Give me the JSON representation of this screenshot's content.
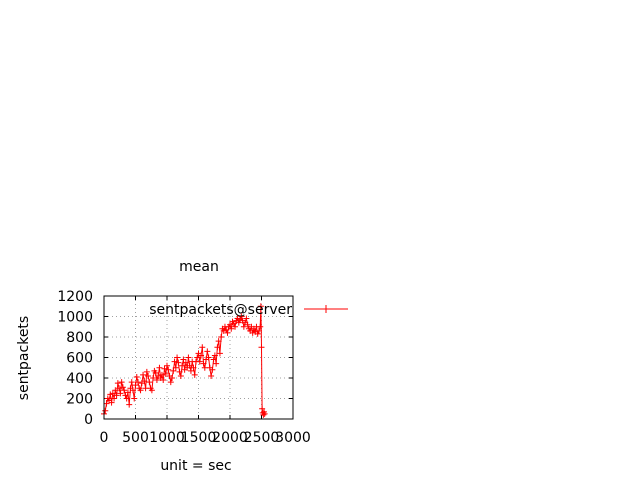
{
  "chart_data": {
    "type": "line",
    "title": "mean",
    "xlabel": "unit = sec",
    "ylabel": "sentpackets",
    "xlim": [
      0,
      3000
    ],
    "ylim": [
      0,
      1200
    ],
    "x_ticks": [
      "0",
      "500",
      "1000",
      "1500",
      "2000",
      "2500",
      "3000"
    ],
    "y_ticks": [
      "0",
      "200",
      "400",
      "600",
      "800",
      "1000",
      "1200"
    ],
    "grid": true,
    "legend_position": "top-right",
    "series": [
      {
        "name": "sentpackets@server",
        "color": "#ff0000",
        "marker": "plus",
        "points": [
          [
            0,
            50
          ],
          [
            20,
            80
          ],
          [
            40,
            150
          ],
          [
            60,
            200
          ],
          [
            80,
            180
          ],
          [
            100,
            240
          ],
          [
            120,
            160
          ],
          [
            140,
            250
          ],
          [
            160,
            200
          ],
          [
            180,
            280
          ],
          [
            200,
            230
          ],
          [
            220,
            350
          ],
          [
            240,
            300
          ],
          [
            260,
            250
          ],
          [
            280,
            360
          ],
          [
            300,
            310
          ],
          [
            320,
            280
          ],
          [
            340,
            230
          ],
          [
            360,
            200
          ],
          [
            380,
            260
          ],
          [
            400,
            140
          ],
          [
            420,
            300
          ],
          [
            440,
            360
          ],
          [
            460,
            280
          ],
          [
            480,
            200
          ],
          [
            500,
            330
          ],
          [
            520,
            410
          ],
          [
            540,
            360
          ],
          [
            560,
            300
          ],
          [
            580,
            280
          ],
          [
            600,
            350
          ],
          [
            620,
            430
          ],
          [
            640,
            370
          ],
          [
            660,
            300
          ],
          [
            680,
            460
          ],
          [
            700,
            420
          ],
          [
            720,
            360
          ],
          [
            740,
            300
          ],
          [
            760,
            280
          ],
          [
            780,
            400
          ],
          [
            800,
            470
          ],
          [
            820,
            450
          ],
          [
            840,
            380
          ],
          [
            860,
            420
          ],
          [
            880,
            500
          ],
          [
            900,
            400
          ],
          [
            920,
            430
          ],
          [
            940,
            380
          ],
          [
            960,
            490
          ],
          [
            980,
            440
          ],
          [
            1000,
            520
          ],
          [
            1020,
            480
          ],
          [
            1040,
            420
          ],
          [
            1060,
            360
          ],
          [
            1080,
            400
          ],
          [
            1100,
            470
          ],
          [
            1120,
            560
          ],
          [
            1140,
            500
          ],
          [
            1160,
            600
          ],
          [
            1180,
            550
          ],
          [
            1200,
            460
          ],
          [
            1220,
            420
          ],
          [
            1240,
            520
          ],
          [
            1260,
            580
          ],
          [
            1280,
            480
          ],
          [
            1300,
            550
          ],
          [
            1320,
            500
          ],
          [
            1340,
            600
          ],
          [
            1360,
            520
          ],
          [
            1380,
            470
          ],
          [
            1400,
            560
          ],
          [
            1420,
            500
          ],
          [
            1440,
            430
          ],
          [
            1460,
            560
          ],
          [
            1480,
            600
          ],
          [
            1500,
            640
          ],
          [
            1520,
            560
          ],
          [
            1540,
            620
          ],
          [
            1560,
            700
          ],
          [
            1580,
            540
          ],
          [
            1600,
            500
          ],
          [
            1620,
            580
          ],
          [
            1640,
            660
          ],
          [
            1660,
            600
          ],
          [
            1680,
            500
          ],
          [
            1700,
            420
          ],
          [
            1720,
            480
          ],
          [
            1740,
            580
          ],
          [
            1760,
            620
          ],
          [
            1780,
            540
          ],
          [
            1800,
            700
          ],
          [
            1820,
            760
          ],
          [
            1840,
            640
          ],
          [
            1860,
            800
          ],
          [
            1880,
            880
          ],
          [
            1900,
            860
          ],
          [
            1920,
            900
          ],
          [
            1940,
            870
          ],
          [
            1960,
            840
          ],
          [
            1980,
            900
          ],
          [
            2000,
            920
          ],
          [
            2020,
            880
          ],
          [
            2040,
            950
          ],
          [
            2060,
            930
          ],
          [
            2080,
            900
          ],
          [
            2100,
            960
          ],
          [
            2120,
            980
          ],
          [
            2140,
            940
          ],
          [
            2160,
            970
          ],
          [
            2180,
            1000
          ],
          [
            2200,
            960
          ],
          [
            2220,
            900
          ],
          [
            2240,
            940
          ],
          [
            2260,
            980
          ],
          [
            2280,
            920
          ],
          [
            2300,
            880
          ],
          [
            2320,
            860
          ],
          [
            2340,
            900
          ],
          [
            2360,
            840
          ],
          [
            2380,
            880
          ],
          [
            2400,
            850
          ],
          [
            2420,
            900
          ],
          [
            2440,
            830
          ],
          [
            2460,
            860
          ],
          [
            2480,
            900
          ],
          [
            2490,
            1100
          ],
          [
            2500,
            700
          ],
          [
            2510,
            100
          ],
          [
            2520,
            60
          ],
          [
            2530,
            40
          ],
          [
            2540,
            70
          ],
          [
            2550,
            50
          ]
        ]
      }
    ]
  }
}
